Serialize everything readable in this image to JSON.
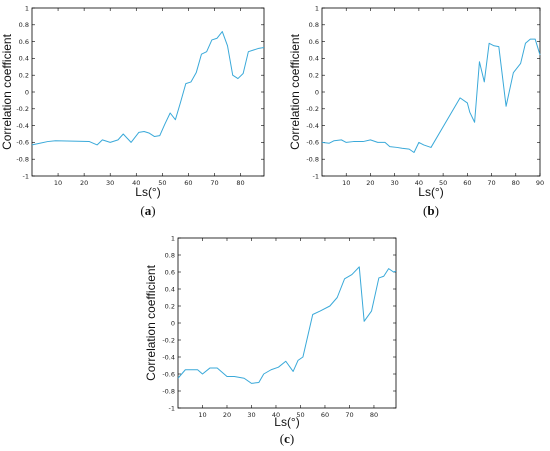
{
  "colors": {
    "line": "#3aa9d9",
    "axis": "#000000"
  },
  "chart_data": [
    {
      "type": "line",
      "panel_label": "(a)",
      "xlabel": "Ls(°)",
      "ylabel": "Correlation coefficient",
      "xlim": [
        0,
        89
      ],
      "ylim": [
        -1,
        1
      ],
      "xticks": [
        10,
        20,
        30,
        40,
        50,
        60,
        70,
        80
      ],
      "yticks": [
        -1,
        -0.8,
        -0.6,
        -0.4,
        -0.2,
        0,
        0.2,
        0.4,
        0.6,
        0.8,
        1
      ],
      "ytick_labels": [
        "-1",
        "-0.8",
        "-0.6",
        "-0.4",
        "-0.2",
        "0",
        "0.2",
        "0.4",
        "0.6",
        "0.8",
        "1"
      ],
      "grid": false,
      "series": [
        {
          "x": [
            0,
            3,
            6,
            9,
            22,
            25,
            27,
            30,
            33,
            35,
            38,
            41,
            43,
            45,
            47,
            49,
            51,
            53,
            55,
            57,
            59,
            61,
            63,
            65,
            67,
            69,
            71,
            73,
            75,
            77,
            79,
            81,
            83,
            85,
            87,
            89
          ],
          "y": [
            -0.63,
            -0.61,
            -0.59,
            -0.58,
            -0.59,
            -0.63,
            -0.57,
            -0.6,
            -0.57,
            -0.5,
            -0.6,
            -0.48,
            -0.47,
            -0.49,
            -0.53,
            -0.52,
            -0.38,
            -0.25,
            -0.33,
            -0.12,
            0.1,
            0.12,
            0.23,
            0.45,
            0.48,
            0.62,
            0.64,
            0.72,
            0.55,
            0.2,
            0.16,
            0.22,
            0.48,
            0.5,
            0.52,
            0.53
          ]
        }
      ]
    },
    {
      "type": "line",
      "panel_label": "(b)",
      "xlabel": "Ls(°)",
      "ylabel": "Correlation coefficient",
      "xlim": [
        0,
        90
      ],
      "ylim": [
        -1,
        1
      ],
      "xticks": [
        10,
        20,
        30,
        40,
        50,
        60,
        70,
        80,
        90
      ],
      "yticks": [
        -1,
        -0.8,
        -0.6,
        -0.4,
        -0.2,
        0,
        0.2,
        0.4,
        0.6,
        0.8,
        1
      ],
      "ytick_labels": [
        "-1",
        "-0.8",
        "-0.6",
        "-0.4",
        "-0.2",
        "0",
        "0.2",
        "0.4",
        "0.6",
        "0.8",
        "1"
      ],
      "grid": false,
      "series": [
        {
          "x": [
            0,
            3,
            5,
            8,
            10,
            13,
            17,
            20,
            23,
            26,
            28,
            31,
            33,
            36,
            38,
            40,
            42,
            45,
            57,
            60,
            61,
            63,
            65,
            67,
            69,
            71,
            73,
            76,
            79,
            82,
            84,
            86,
            88,
            90
          ],
          "y": [
            -0.6,
            -0.61,
            -0.58,
            -0.57,
            -0.6,
            -0.59,
            -0.59,
            -0.57,
            -0.6,
            -0.6,
            -0.65,
            -0.66,
            -0.67,
            -0.68,
            -0.72,
            -0.6,
            -0.63,
            -0.66,
            -0.07,
            -0.13,
            -0.24,
            -0.36,
            0.36,
            0.12,
            0.58,
            0.55,
            0.54,
            -0.17,
            0.23,
            0.34,
            0.58,
            0.63,
            0.63,
            0.44
          ]
        }
      ]
    },
    {
      "type": "line",
      "panel_label": "(c)",
      "xlabel": "Ls(°)",
      "ylabel": "Correlation coefficient",
      "xlim": [
        0,
        89
      ],
      "ylim": [
        -1,
        1
      ],
      "xticks": [
        10,
        20,
        30,
        40,
        50,
        60,
        70,
        80
      ],
      "yticks": [
        -1,
        -0.8,
        -0.6,
        -0.4,
        -0.2,
        0,
        0.2,
        0.4,
        0.6,
        0.8,
        1
      ],
      "ytick_labels": [
        "-1",
        "-0.8",
        "-0.6",
        "-0.4",
        "-0.2",
        "0",
        "0.2",
        "0.4",
        "0.6",
        "0.8",
        "1"
      ],
      "grid": false,
      "series": [
        {
          "x": [
            0,
            3,
            8,
            10,
            13,
            16,
            20,
            23,
            27,
            30,
            33,
            35,
            38,
            41,
            44,
            47,
            49,
            51,
            55,
            58,
            62,
            65,
            68,
            71,
            74,
            76,
            79,
            82,
            84,
            86,
            88,
            89
          ],
          "y": [
            -0.65,
            -0.55,
            -0.55,
            -0.6,
            -0.53,
            -0.53,
            -0.63,
            -0.63,
            -0.65,
            -0.71,
            -0.7,
            -0.6,
            -0.55,
            -0.52,
            -0.45,
            -0.57,
            -0.44,
            -0.4,
            0.1,
            0.14,
            0.2,
            0.3,
            0.52,
            0.57,
            0.66,
            0.02,
            0.14,
            0.53,
            0.55,
            0.64,
            0.6,
            0.61
          ]
        }
      ]
    }
  ]
}
